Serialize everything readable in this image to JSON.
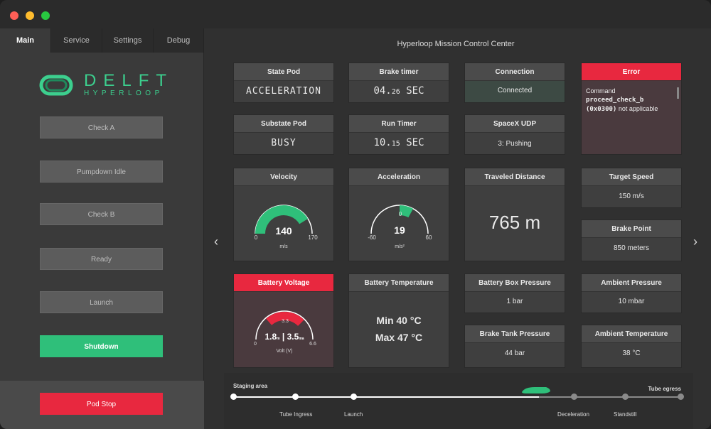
{
  "window": {
    "colors": {
      "close": "#ff5f57",
      "minimize": "#febc2e",
      "maximize": "#28c840"
    }
  },
  "tabs": [
    {
      "label": "Main"
    },
    {
      "label": "Service"
    },
    {
      "label": "Settings"
    },
    {
      "label": "Debug"
    }
  ],
  "logo": {
    "title": "DELFT",
    "subtitle": "HYPERLOOP"
  },
  "sidebar": {
    "buttons": [
      {
        "label": "Check A"
      },
      {
        "label": "Pumpdown Idle"
      },
      {
        "label": "Check B"
      },
      {
        "label": "Ready"
      },
      {
        "label": "Launch"
      },
      {
        "label": "Shutdown"
      }
    ],
    "pod_stop": "Pod Stop"
  },
  "main": {
    "title": "Hyperloop Mission Control Center"
  },
  "panels": {
    "state_pod": {
      "title": "State Pod",
      "value": "ACCELERATION"
    },
    "brake_timer": {
      "title": "Brake timer",
      "value_main": "04.",
      "value_small": "26",
      "unit": "SEC"
    },
    "connection": {
      "title": "Connection",
      "value": "Connected"
    },
    "error": {
      "title": "Error",
      "prefix": "Command ",
      "code1": "proceed_check_b",
      "code2": "(0x0300)",
      "suffix": " not applicable"
    },
    "substate_pod": {
      "title": "Substate Pod",
      "value": "BUSY"
    },
    "run_timer": {
      "title": "Run Timer",
      "value_main": "10.",
      "value_small": "15",
      "unit": "SEC"
    },
    "spacex_udp": {
      "title": "SpaceX UDP",
      "value": "3: Pushing"
    },
    "velocity": {
      "title": "Velocity",
      "value": "140",
      "min": "0",
      "max": "170",
      "unit": "m/s",
      "fraction": 0.8235
    },
    "acceleration": {
      "title": "Acceleration",
      "value": "19",
      "min": "-60",
      "max": "60",
      "zero": "0",
      "unit": "m/s²",
      "fraction": 0.658
    },
    "traveled_distance": {
      "title": "Traveled Distance",
      "value": "765",
      "unit": "m"
    },
    "target_speed": {
      "title": "Target Speed",
      "value": "150 m/s"
    },
    "brake_point": {
      "title": "Brake Point",
      "value": "850 meters"
    },
    "battery_voltage": {
      "title": "Battery Voltage",
      "min": "0",
      "max": "6.6",
      "mark": "3.3",
      "v1_main": "1.8",
      "v1_sub": "m",
      "sep": " | ",
      "v2_main": "3.5",
      "v2_sub": "ma",
      "unit": "Volt (V)",
      "range_start": 0.27,
      "range_end": 0.53
    },
    "battery_temperature": {
      "title": "Battery Temperature",
      "min": "Min 40 °C",
      "max": "Max 47 °C"
    },
    "battery_box_pressure": {
      "title": "Battery Box Pressure",
      "value": "1 bar"
    },
    "ambient_pressure": {
      "title": "Ambient Pressure",
      "value": "10 mbar"
    },
    "brake_tank_pressure": {
      "title": "Brake Tank Pressure",
      "value": "44 bar"
    },
    "ambient_temperature": {
      "title": "Ambient Temperature",
      "value": "38 °C"
    }
  },
  "timeline": {
    "start": "Staging area",
    "end": "Tube egress",
    "stops": [
      "Tube Ingress",
      "Launch",
      "Deceleration",
      "Standstill"
    ]
  },
  "colors": {
    "green": "#2fbf7a",
    "red": "#e8283f"
  }
}
